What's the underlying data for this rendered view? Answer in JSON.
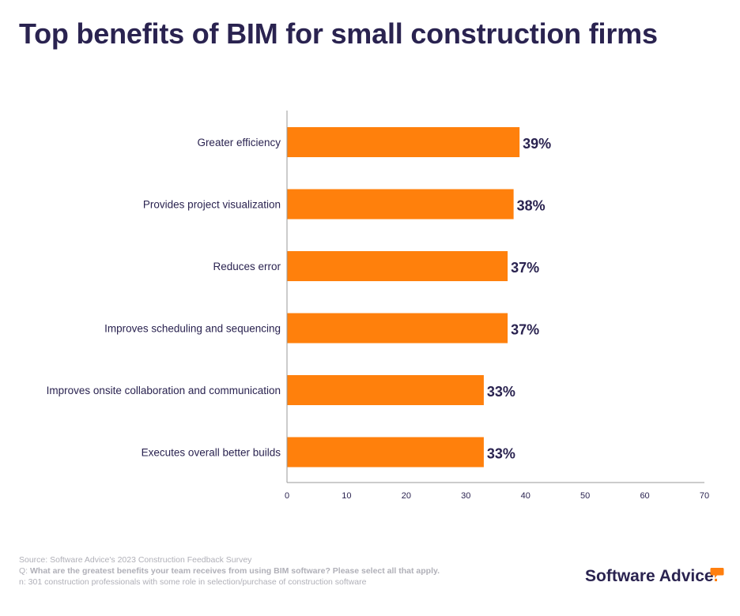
{
  "title": "Top benefits of BIM for small construction firms",
  "chart_data": {
    "type": "bar",
    "orientation": "horizontal",
    "categories": [
      "Greater efficiency",
      "Provides project visualization",
      "Reduces error",
      "Improves scheduling and sequencing",
      "Improves onsite collaboration and communication",
      "Executes overall better builds"
    ],
    "values": [
      39,
      38,
      37,
      37,
      33,
      33
    ],
    "value_labels": [
      "39%",
      "38%",
      "37%",
      "37%",
      "33%",
      "33%"
    ],
    "xlim": [
      0,
      70
    ],
    "xticks": [
      0,
      10,
      20,
      30,
      40,
      50,
      60,
      70
    ],
    "xtick_labels": [
      "0",
      "10",
      "20",
      "30",
      "40",
      "50",
      "60",
      "70"
    ],
    "xlabel": "",
    "ylabel": "",
    "grid": false,
    "bar_color": "#ff800c"
  },
  "footer": {
    "source": "Source: Software Advice's 2023 Construction Feedback Survey",
    "question_prefix": "Q: ",
    "question": "What are the greatest benefits your team receives from using BIM software? Please select all that apply.",
    "sample": "n: 301 construction professionals with some role in selection/purchase of construction software"
  },
  "brand": {
    "name": "Software Advice",
    "dot": "."
  },
  "colors": {
    "text": "#2a2350",
    "bar": "#ff800c",
    "axis": "#9a9a9a",
    "muted": "#b0b0b8"
  }
}
